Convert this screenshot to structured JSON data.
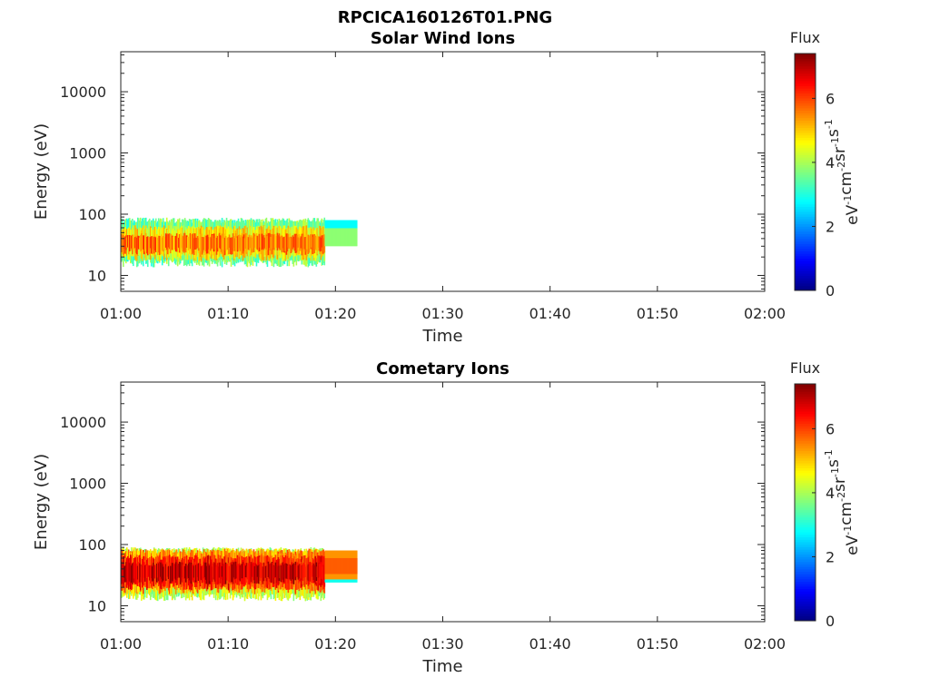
{
  "figure": {
    "main_title": "RPCICA160126T01.PNG"
  },
  "chart_data": [
    {
      "type": "heatmap",
      "title": "Solar Wind Ions",
      "xlabel": "Time",
      "ylabel": "Energy (eV)",
      "x_ticks": [
        "01:00",
        "01:10",
        "01:20",
        "01:30",
        "01:40",
        "01:50",
        "02:00"
      ],
      "x_range_minutes": [
        0,
        60
      ],
      "y_scale": "log",
      "y_range": [
        5.5,
        45000
      ],
      "y_ticks": [
        10,
        100,
        1000,
        10000
      ],
      "y_tick_labels": [
        "10",
        "100",
        "1000",
        "10000"
      ],
      "colorbar": {
        "title": "Flux",
        "unit_base": [
          "eV",
          "cm",
          "sr",
          "s"
        ],
        "unit_exp": [
          "-1",
          "-2",
          "-1",
          "-1"
        ],
        "range": [
          0,
          7.4
        ],
        "ticks": [
          0,
          2,
          4,
          6
        ],
        "tick_labels": [
          "0",
          "2",
          "4",
          "6"
        ],
        "colormap": "jet"
      },
      "data_extent_minutes": [
        0,
        22
      ],
      "bands": [
        {
          "t0": 0,
          "t1": 19,
          "e0": 16,
          "e1": 80,
          "flux": 3.6
        },
        {
          "t0": 0,
          "t1": 19,
          "e0": 20,
          "e1": 60,
          "flux": 4.7
        },
        {
          "t0": 0,
          "t1": 19,
          "e0": 25,
          "e1": 45,
          "flux": 5.6
        },
        {
          "t0": 19,
          "t1": 22,
          "e0": 59,
          "e1": 80,
          "flux": 2.8
        },
        {
          "t0": 19,
          "t1": 22,
          "e0": 30,
          "e1": 59,
          "flux": 3.8
        }
      ]
    },
    {
      "type": "heatmap",
      "title": "Cometary Ions",
      "xlabel": "Time",
      "ylabel": "Energy (eV)",
      "x_ticks": [
        "01:00",
        "01:10",
        "01:20",
        "01:30",
        "01:40",
        "01:50",
        "02:00"
      ],
      "x_range_minutes": [
        0,
        60
      ],
      "y_scale": "log",
      "y_range": [
        5.5,
        45000
      ],
      "y_ticks": [
        10,
        100,
        1000,
        10000
      ],
      "y_tick_labels": [
        "10",
        "100",
        "1000",
        "10000"
      ],
      "colorbar": {
        "title": "Flux",
        "unit_base": [
          "eV",
          "cm",
          "sr",
          "s"
        ],
        "unit_exp": [
          "-1",
          "-2",
          "-1",
          "-1"
        ],
        "range": [
          0,
          7.4
        ],
        "ticks": [
          0,
          2,
          4,
          6
        ],
        "tick_labels": [
          "0",
          "2",
          "4",
          "6"
        ],
        "colormap": "jet"
      },
      "data_extent_minutes": [
        0,
        22
      ],
      "bands": [
        {
          "t0": 0,
          "t1": 19,
          "e0": 14,
          "e1": 82,
          "flux": 4.2
        },
        {
          "t0": 0,
          "t1": 19,
          "e0": 18,
          "e1": 78,
          "flux": 5.4
        },
        {
          "t0": 0,
          "t1": 19,
          "e0": 21,
          "e1": 62,
          "flux": 6.2
        },
        {
          "t0": 0,
          "t1": 19,
          "e0": 26,
          "e1": 48,
          "flux": 6.8
        },
        {
          "t0": 19,
          "t1": 22,
          "e0": 24,
          "e1": 27,
          "flux": 2.9
        },
        {
          "t0": 19,
          "t1": 22,
          "e0": 27,
          "e1": 80,
          "flux": 5.4
        },
        {
          "t0": 19,
          "t1": 22,
          "e0": 33,
          "e1": 60,
          "flux": 5.8
        }
      ]
    }
  ]
}
